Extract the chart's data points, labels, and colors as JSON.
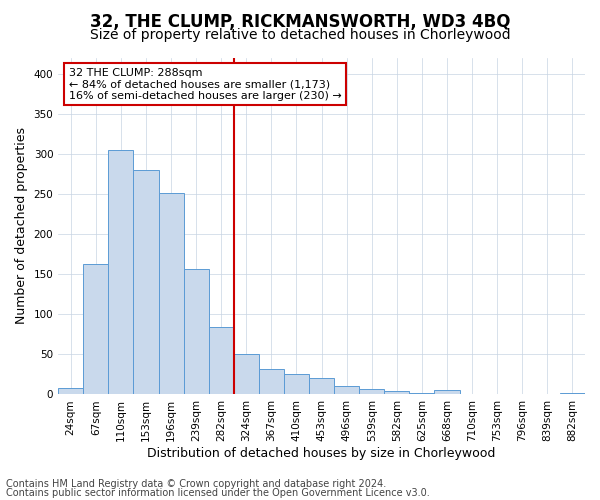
{
  "title": "32, THE CLUMP, RICKMANSWORTH, WD3 4BQ",
  "subtitle": "Size of property relative to detached houses in Chorleywood",
  "xlabel": "Distribution of detached houses by size in Chorleywood",
  "ylabel": "Number of detached properties",
  "categories": [
    "24sqm",
    "67sqm",
    "110sqm",
    "153sqm",
    "196sqm",
    "239sqm",
    "282sqm",
    "324sqm",
    "367sqm",
    "410sqm",
    "453sqm",
    "496sqm",
    "539sqm",
    "582sqm",
    "625sqm",
    "668sqm",
    "710sqm",
    "753sqm",
    "796sqm",
    "839sqm",
    "882sqm"
  ],
  "values": [
    8,
    163,
    305,
    280,
    251,
    156,
    84,
    50,
    32,
    26,
    21,
    11,
    7,
    4,
    2,
    5,
    1,
    1,
    1,
    1,
    2
  ],
  "bar_color": "#c9d9ec",
  "bar_edge_color": "#5b9bd5",
  "vline_x": 6.5,
  "annotation_line1": "32 THE CLUMP: 288sqm",
  "annotation_line2": "← 84% of detached houses are smaller (1,173)",
  "annotation_line3": "16% of semi-detached houses are larger (230) →",
  "annotation_box_color": "#ffffff",
  "annotation_box_edge_color": "#cc0000",
  "vline_color": "#cc0000",
  "ylim": [
    0,
    420
  ],
  "yticks": [
    0,
    50,
    100,
    150,
    200,
    250,
    300,
    350,
    400
  ],
  "footer_line1": "Contains HM Land Registry data © Crown copyright and database right 2024.",
  "footer_line2": "Contains public sector information licensed under the Open Government Licence v3.0.",
  "background_color": "#ffffff",
  "grid_color": "#c8d4e3",
  "title_fontsize": 12,
  "subtitle_fontsize": 10,
  "axis_label_fontsize": 9,
  "tick_fontsize": 7.5,
  "annotation_fontsize": 8,
  "footer_fontsize": 7
}
